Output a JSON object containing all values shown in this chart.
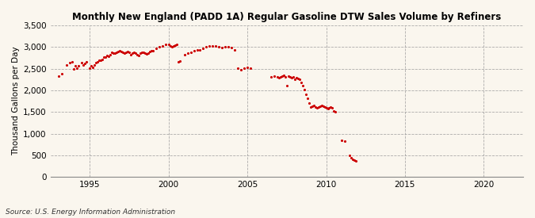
{
  "title": "Monthly New England (PADD 1A) Regular Gasoline DTW Sales Volume by Refiners",
  "ylabel": "Thousand Gallons per Day",
  "source": "Source: U.S. Energy Information Administration",
  "xlim": [
    1992.5,
    2022.5
  ],
  "ylim": [
    0,
    3500
  ],
  "yticks": [
    0,
    500,
    1000,
    1500,
    2000,
    2500,
    3000,
    3500
  ],
  "xticks": [
    1995,
    2000,
    2005,
    2010,
    2015,
    2020
  ],
  "background_color": "#FAF6EE",
  "marker_color": "#CC0000",
  "data_points": [
    [
      1993.0,
      2330
    ],
    [
      1993.2,
      2390
    ],
    [
      1993.5,
      2590
    ],
    [
      1993.7,
      2630
    ],
    [
      1993.9,
      2650
    ],
    [
      1994.0,
      2490
    ],
    [
      1994.1,
      2560
    ],
    [
      1994.2,
      2510
    ],
    [
      1994.3,
      2560
    ],
    [
      1994.5,
      2630
    ],
    [
      1994.6,
      2590
    ],
    [
      1994.7,
      2620
    ],
    [
      1994.8,
      2660
    ],
    [
      1995.0,
      2510
    ],
    [
      1995.1,
      2570
    ],
    [
      1995.2,
      2530
    ],
    [
      1995.3,
      2590
    ],
    [
      1995.4,
      2630
    ],
    [
      1995.5,
      2660
    ],
    [
      1995.6,
      2700
    ],
    [
      1995.7,
      2690
    ],
    [
      1995.8,
      2720
    ],
    [
      1995.9,
      2760
    ],
    [
      1996.0,
      2760
    ],
    [
      1996.1,
      2800
    ],
    [
      1996.2,
      2790
    ],
    [
      1996.3,
      2830
    ],
    [
      1996.4,
      2870
    ],
    [
      1996.5,
      2860
    ],
    [
      1996.6,
      2850
    ],
    [
      1996.7,
      2880
    ],
    [
      1996.8,
      2890
    ],
    [
      1996.9,
      2910
    ],
    [
      1997.0,
      2890
    ],
    [
      1997.1,
      2870
    ],
    [
      1997.2,
      2860
    ],
    [
      1997.3,
      2880
    ],
    [
      1997.4,
      2900
    ],
    [
      1997.5,
      2870
    ],
    [
      1997.6,
      2830
    ],
    [
      1997.7,
      2850
    ],
    [
      1997.8,
      2870
    ],
    [
      1997.9,
      2860
    ],
    [
      1998.0,
      2830
    ],
    [
      1998.1,
      2810
    ],
    [
      1998.2,
      2850
    ],
    [
      1998.3,
      2870
    ],
    [
      1998.4,
      2880
    ],
    [
      1998.5,
      2860
    ],
    [
      1998.6,
      2840
    ],
    [
      1998.7,
      2860
    ],
    [
      1998.8,
      2890
    ],
    [
      1998.9,
      2910
    ],
    [
      1999.0,
      2910
    ],
    [
      1999.2,
      2970
    ],
    [
      1999.4,
      3010
    ],
    [
      1999.6,
      3030
    ],
    [
      1999.8,
      3060
    ],
    [
      2000.0,
      3060
    ],
    [
      2000.1,
      3030
    ],
    [
      2000.2,
      3010
    ],
    [
      2000.3,
      3030
    ],
    [
      2000.4,
      3050
    ],
    [
      2000.5,
      3060
    ],
    [
      2000.6,
      2650
    ],
    [
      2000.7,
      2670
    ],
    [
      2001.0,
      2830
    ],
    [
      2001.2,
      2860
    ],
    [
      2001.4,
      2880
    ],
    [
      2001.6,
      2910
    ],
    [
      2001.8,
      2930
    ],
    [
      2002.0,
      2930
    ],
    [
      2002.2,
      2960
    ],
    [
      2002.4,
      3010
    ],
    [
      2002.6,
      3030
    ],
    [
      2002.8,
      3030
    ],
    [
      2003.0,
      3030
    ],
    [
      2003.2,
      3010
    ],
    [
      2003.4,
      2990
    ],
    [
      2003.6,
      3010
    ],
    [
      2003.8,
      3010
    ],
    [
      2004.0,
      2990
    ],
    [
      2004.2,
      2930
    ],
    [
      2004.4,
      2510
    ],
    [
      2004.6,
      2470
    ],
    [
      2004.8,
      2510
    ],
    [
      2005.0,
      2530
    ],
    [
      2005.2,
      2510
    ],
    [
      2006.5,
      2310
    ],
    [
      2006.7,
      2330
    ],
    [
      2006.9,
      2310
    ],
    [
      2007.0,
      2290
    ],
    [
      2007.1,
      2310
    ],
    [
      2007.2,
      2330
    ],
    [
      2007.3,
      2350
    ],
    [
      2007.4,
      2310
    ],
    [
      2007.5,
      2110
    ],
    [
      2007.6,
      2330
    ],
    [
      2007.7,
      2310
    ],
    [
      2007.8,
      2290
    ],
    [
      2007.9,
      2310
    ],
    [
      2008.0,
      2260
    ],
    [
      2008.1,
      2290
    ],
    [
      2008.2,
      2270
    ],
    [
      2008.3,
      2250
    ],
    [
      2008.4,
      2190
    ],
    [
      2008.5,
      2110
    ],
    [
      2008.6,
      2010
    ],
    [
      2008.7,
      1910
    ],
    [
      2008.8,
      1810
    ],
    [
      2008.9,
      1710
    ],
    [
      2009.0,
      1610
    ],
    [
      2009.1,
      1630
    ],
    [
      2009.2,
      1650
    ],
    [
      2009.3,
      1610
    ],
    [
      2009.4,
      1590
    ],
    [
      2009.5,
      1610
    ],
    [
      2009.6,
      1630
    ],
    [
      2009.7,
      1650
    ],
    [
      2009.8,
      1630
    ],
    [
      2009.9,
      1610
    ],
    [
      2010.0,
      1590
    ],
    [
      2010.1,
      1570
    ],
    [
      2010.2,
      1590
    ],
    [
      2010.3,
      1610
    ],
    [
      2010.4,
      1590
    ],
    [
      2010.5,
      1530
    ],
    [
      2010.6,
      1510
    ],
    [
      2011.0,
      850
    ],
    [
      2011.2,
      830
    ],
    [
      2011.5,
      500
    ],
    [
      2011.6,
      440
    ],
    [
      2011.7,
      410
    ],
    [
      2011.8,
      390
    ],
    [
      2011.9,
      370
    ]
  ]
}
